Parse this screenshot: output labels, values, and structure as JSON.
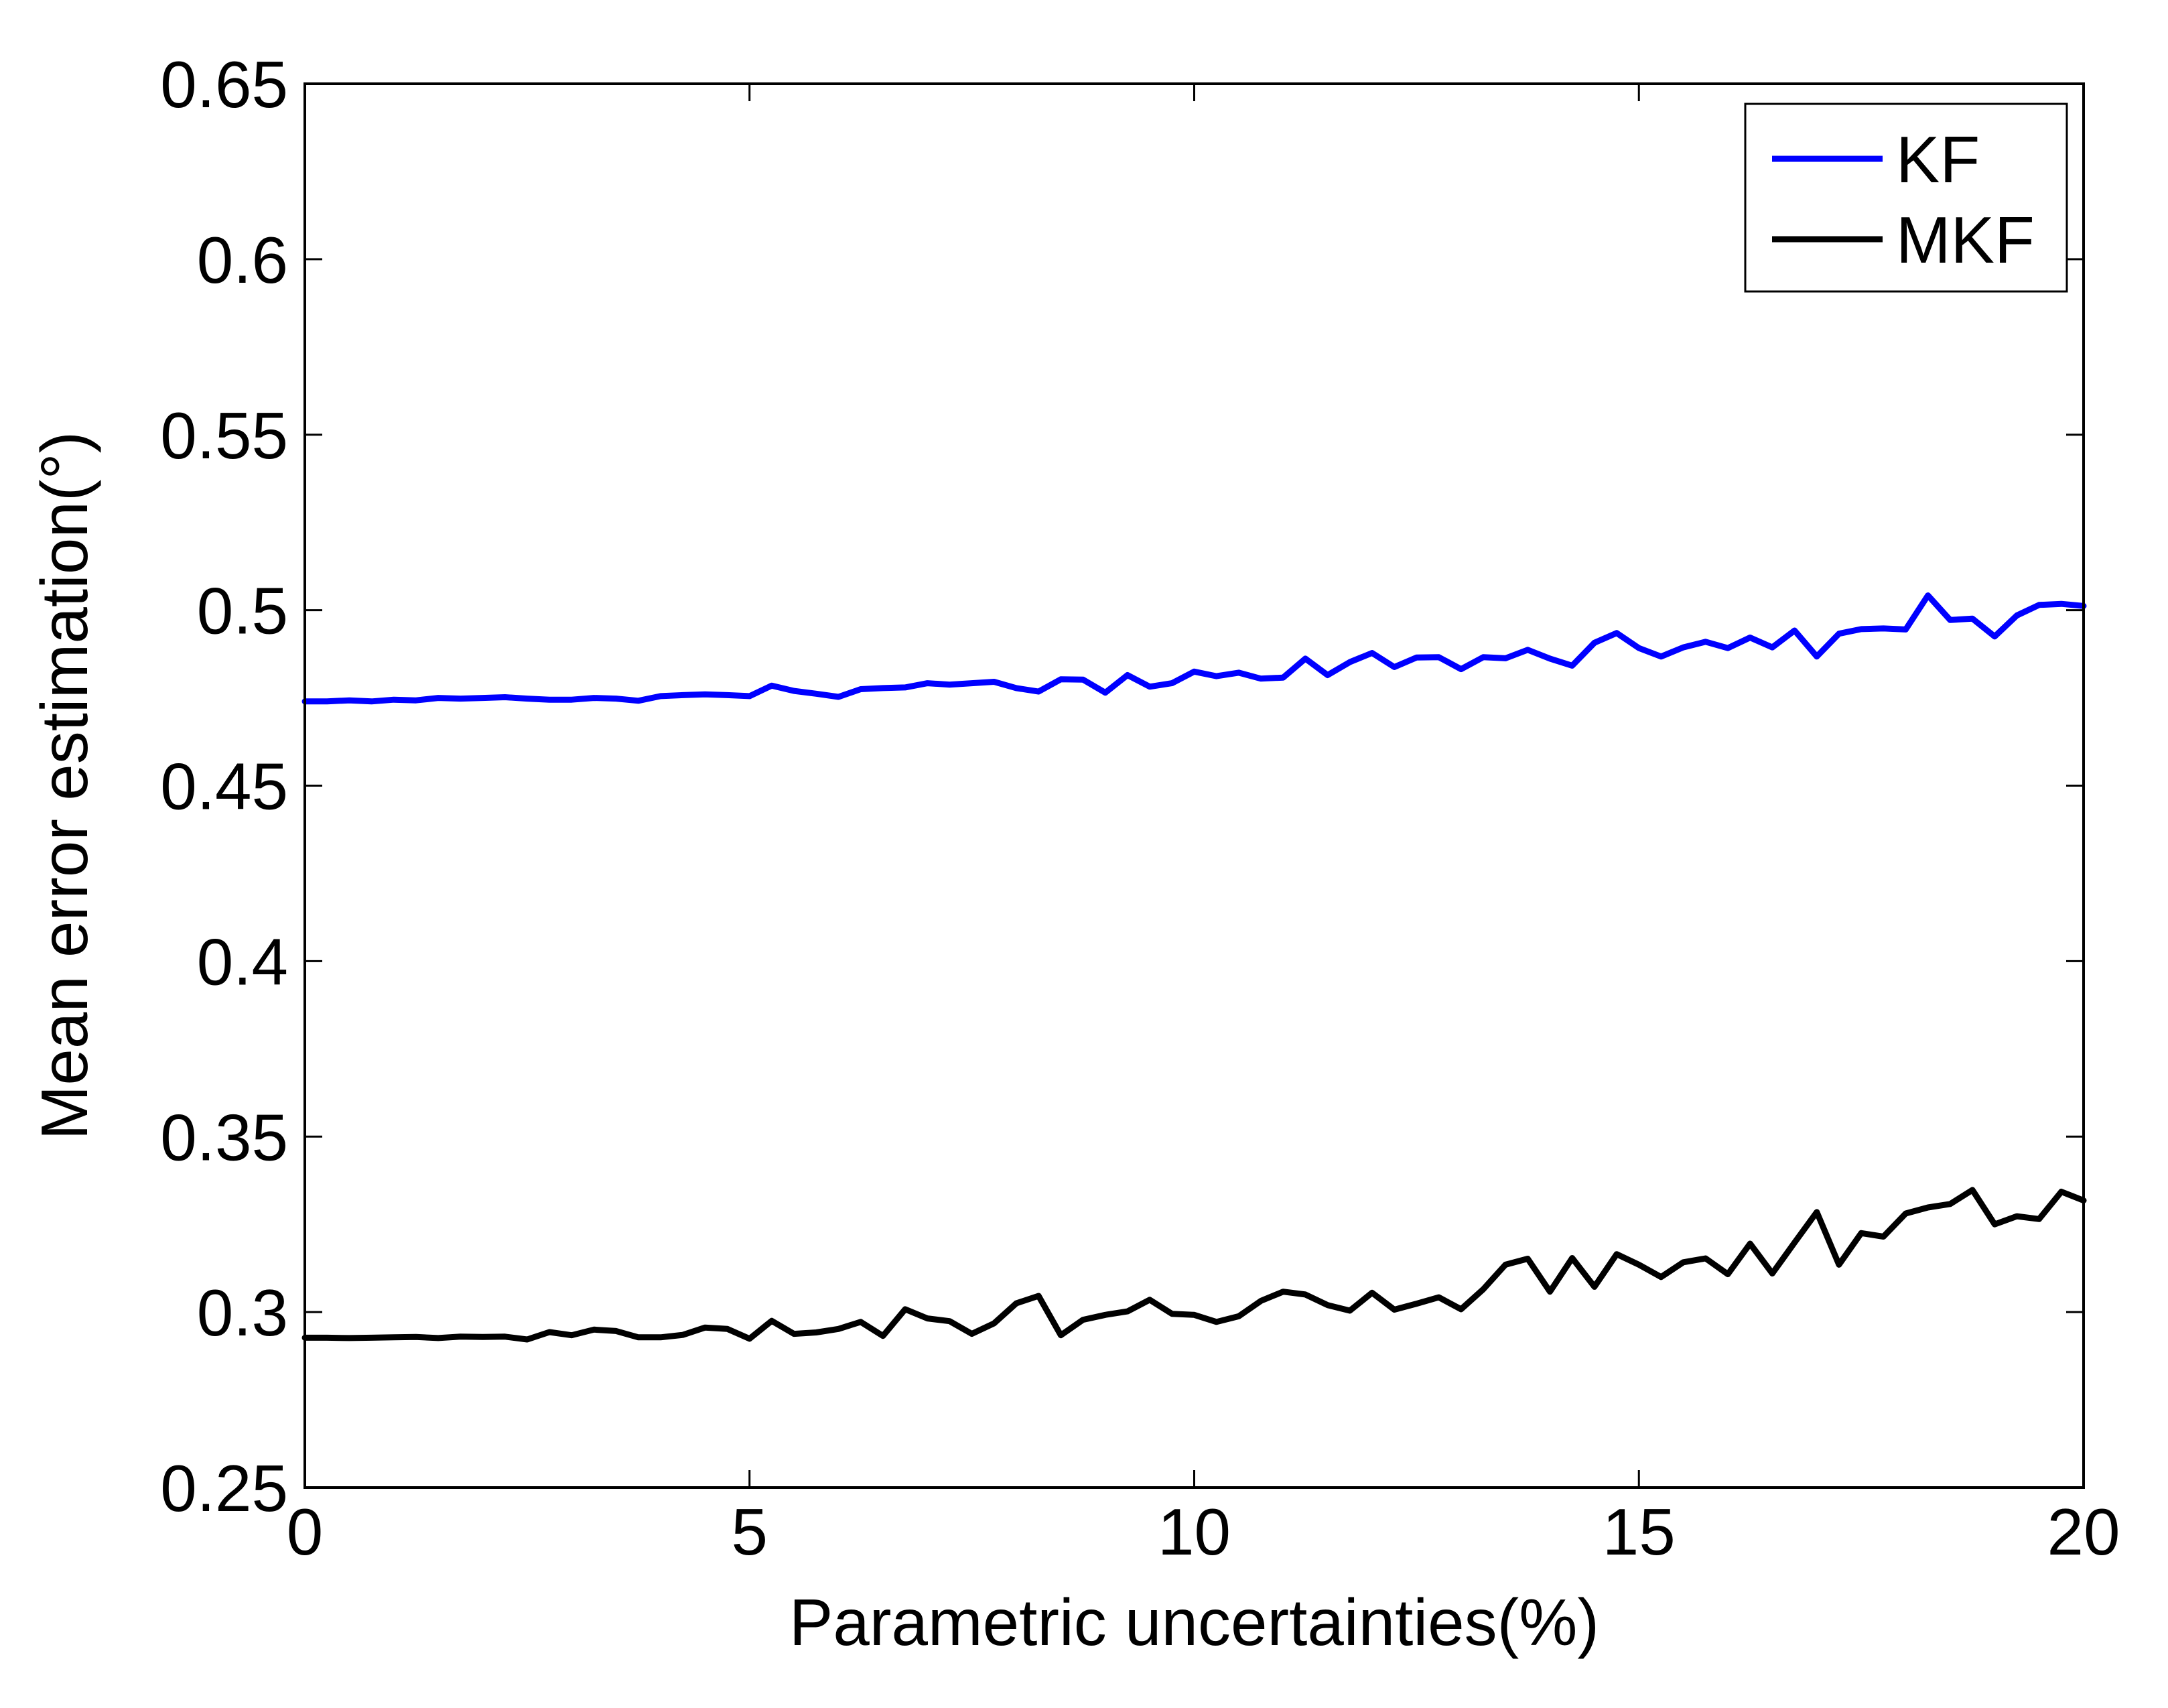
{
  "chart_data": {
    "type": "line",
    "title": "",
    "xlabel": "Parametric uncertainties(%)",
    "ylabel": "Mean error estimation(°)",
    "xlim": [
      0,
      20
    ],
    "ylim": [
      0.25,
      0.65
    ],
    "xticks": [
      0,
      5,
      10,
      15,
      20
    ],
    "xtick_labels": [
      "0",
      "5",
      "10",
      "15",
      "20"
    ],
    "yticks": [
      0.25,
      0.3,
      0.35,
      0.4,
      0.45,
      0.5,
      0.55,
      0.6,
      0.65
    ],
    "ytick_labels": [
      "0.25",
      "0.3",
      "0.35",
      "0.4",
      "0.45",
      "0.5",
      "0.55",
      "0.6",
      "0.65"
    ],
    "grid": false,
    "legend_position": "top-right",
    "x": [
      0,
      0.25,
      0.5,
      0.75,
      1,
      1.25,
      1.5,
      1.75,
      2,
      2.25,
      2.5,
      2.75,
      3,
      3.25,
      3.5,
      3.75,
      4,
      4.25,
      4.5,
      4.75,
      5,
      5.25,
      5.5,
      5.75,
      6,
      6.25,
      6.5,
      6.75,
      7,
      7.25,
      7.5,
      7.75,
      8,
      8.25,
      8.5,
      8.75,
      9,
      9.25,
      9.5,
      9.75,
      10,
      10.25,
      10.5,
      10.75,
      11,
      11.25,
      11.5,
      11.75,
      12,
      12.25,
      12.5,
      12.75,
      13,
      13.25,
      13.5,
      13.75,
      14,
      14.25,
      14.5,
      14.75,
      15,
      15.25,
      15.5,
      15.75,
      16,
      16.25,
      16.5,
      16.75,
      17,
      17.25,
      17.5,
      17.75,
      18,
      18.25,
      18.5,
      18.75,
      19,
      19.25,
      19.5,
      19.75,
      20
    ],
    "series": [
      {
        "name": "KF",
        "color": "#0000ff",
        "values": [
          0.474,
          0.474,
          0.4743,
          0.474,
          0.4745,
          0.4743,
          0.475,
          0.4748,
          0.475,
          0.4752,
          0.4748,
          0.4745,
          0.4745,
          0.475,
          0.4748,
          0.4742,
          0.4755,
          0.4758,
          0.476,
          0.4758,
          0.4755,
          0.4785,
          0.477,
          0.4762,
          0.4753,
          0.4775,
          0.4778,
          0.478,
          0.4792,
          0.4788,
          0.4792,
          0.4796,
          0.4778,
          0.4768,
          0.4803,
          0.4802,
          0.4765,
          0.4815,
          0.4782,
          0.4792,
          0.4825,
          0.4812,
          0.4822,
          0.4805,
          0.4808,
          0.4862,
          0.4815,
          0.4852,
          0.4878,
          0.4838,
          0.4865,
          0.4866,
          0.4832,
          0.4866,
          0.4863,
          0.4887,
          0.4862,
          0.4842,
          0.4907,
          0.4935,
          0.4892,
          0.4868,
          0.4894,
          0.491,
          0.4892,
          0.4922,
          0.4894,
          0.4942,
          0.4868,
          0.4933,
          0.4946,
          0.4948,
          0.4945,
          0.5042,
          0.4972,
          0.4976,
          0.4925,
          0.4985,
          0.5015,
          0.5018,
          0.5012
        ]
      },
      {
        "name": "MKF",
        "color": "#000000",
        "values": [
          0.2927,
          0.2927,
          0.2926,
          0.2927,
          0.2928,
          0.2929,
          0.2926,
          0.293,
          0.2929,
          0.293,
          0.2922,
          0.2943,
          0.2934,
          0.295,
          0.2946,
          0.2928,
          0.2928,
          0.2935,
          0.2956,
          0.2952,
          0.2924,
          0.2975,
          0.2938,
          0.2942,
          0.2952,
          0.2972,
          0.2932,
          0.3008,
          0.2982,
          0.2974,
          0.2938,
          0.2968,
          0.3025,
          0.3046,
          0.2934,
          0.2978,
          0.2992,
          0.3002,
          0.3035,
          0.2995,
          0.2992,
          0.2972,
          0.2988,
          0.3032,
          0.3058,
          0.305,
          0.302,
          0.3004,
          0.3055,
          0.3007,
          0.3024,
          0.3042,
          0.3008,
          0.3065,
          0.3135,
          0.3152,
          0.3058,
          0.3154,
          0.3072,
          0.3165,
          0.3135,
          0.31,
          0.3142,
          0.3153,
          0.3108,
          0.3195,
          0.311,
          0.3198,
          0.3285,
          0.3135,
          0.3225,
          0.3215,
          0.3281,
          0.3298,
          0.3308,
          0.3348,
          0.325,
          0.3273,
          0.3265,
          0.3343,
          0.3318
        ]
      }
    ]
  }
}
